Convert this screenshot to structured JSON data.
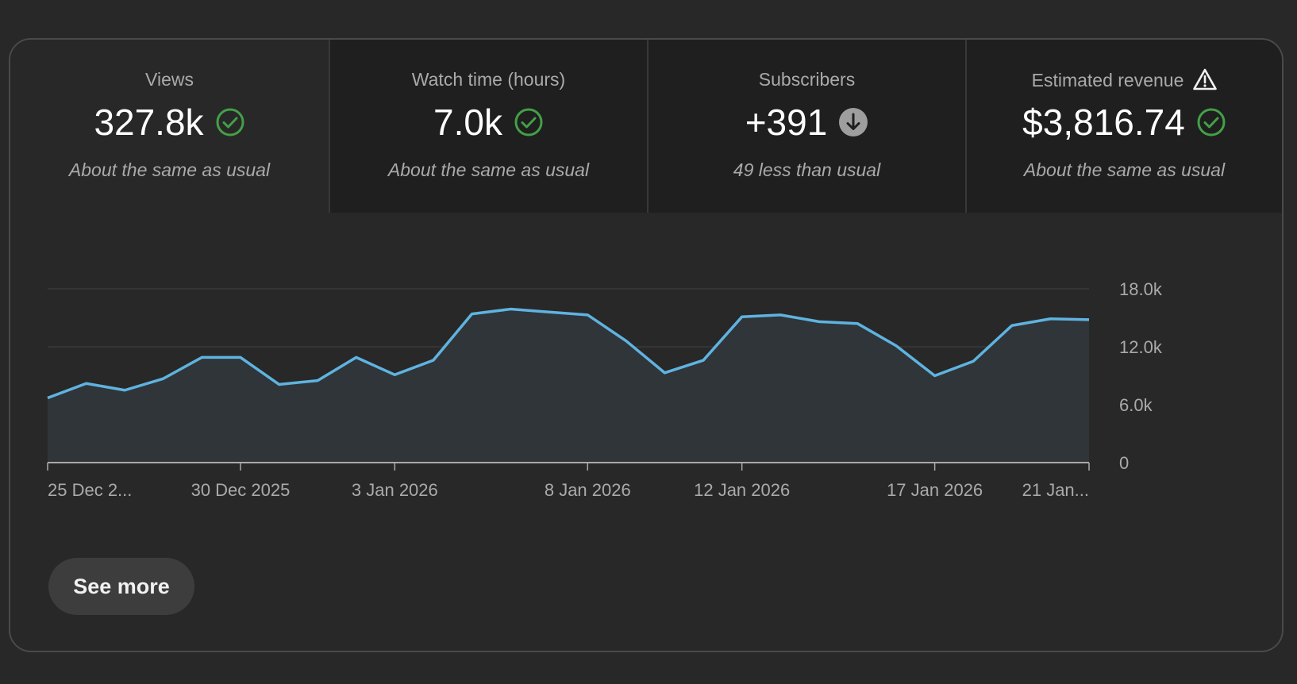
{
  "metrics": [
    {
      "title": "Views",
      "value": "327.8k",
      "status": "check-circle-icon",
      "note": "About the same as usual"
    },
    {
      "title": "Watch time (hours)",
      "value": "7.0k",
      "status": "check-circle-icon",
      "note": "About the same as usual"
    },
    {
      "title": "Subscribers",
      "value": "+391",
      "status": "arrow-down-circle-icon",
      "note": "49 less than usual"
    },
    {
      "title": "Estimated revenue",
      "value": "$3,816.74",
      "status": "check-circle-icon",
      "note": "About the same as usual",
      "title_icon": "warning-icon"
    }
  ],
  "colors": {
    "line": "#5fb3e0",
    "area": "#2f3539",
    "check": "#43a047",
    "neutral": "#9e9e9e"
  },
  "chart_data": {
    "type": "area",
    "x": [
      "25 Dec 2025",
      "26 Dec 2025",
      "27 Dec 2025",
      "28 Dec 2025",
      "29 Dec 2025",
      "30 Dec 2025",
      "31 Dec 2025",
      "1 Jan 2026",
      "2 Jan 2026",
      "3 Jan 2026",
      "4 Jan 2026",
      "5 Jan 2026",
      "6 Jan 2026",
      "7 Jan 2026",
      "8 Jan 2026",
      "9 Jan 2026",
      "10 Jan 2026",
      "11 Jan 2026",
      "12 Jan 2026",
      "13 Jan 2026",
      "14 Jan 2026",
      "15 Jan 2026",
      "16 Jan 2026",
      "17 Jan 2026",
      "18 Jan 2026",
      "19 Jan 2026",
      "20 Jan 2026",
      "21 Jan 2026"
    ],
    "series": [
      {
        "values": [
          6700,
          8200,
          7500,
          8700,
          10900,
          10900,
          8100,
          8500,
          10900,
          9100,
          10600,
          15400,
          15900,
          15600,
          15300,
          12600,
          9300,
          10600,
          15100,
          15300,
          14600,
          14400,
          12100,
          9000,
          10500,
          14200,
          14900,
          14800
        ]
      }
    ],
    "y_ticks": [
      "18.0k",
      "12.0k",
      "6.0k",
      "0"
    ],
    "ylim": [
      0,
      18000
    ],
    "x_tick_labels": [
      {
        "index": 0,
        "label": "25 Dec 2..."
      },
      {
        "index": 5,
        "label": "30 Dec 2025"
      },
      {
        "index": 9,
        "label": "3 Jan 2026"
      },
      {
        "index": 14,
        "label": "8 Jan 2026"
      },
      {
        "index": 18,
        "label": "12 Jan 2026"
      },
      {
        "index": 23,
        "label": "17 Jan 2026"
      },
      {
        "index": 27,
        "label": "21 Jan..."
      }
    ],
    "grid": true
  },
  "see_more_label": "See more"
}
